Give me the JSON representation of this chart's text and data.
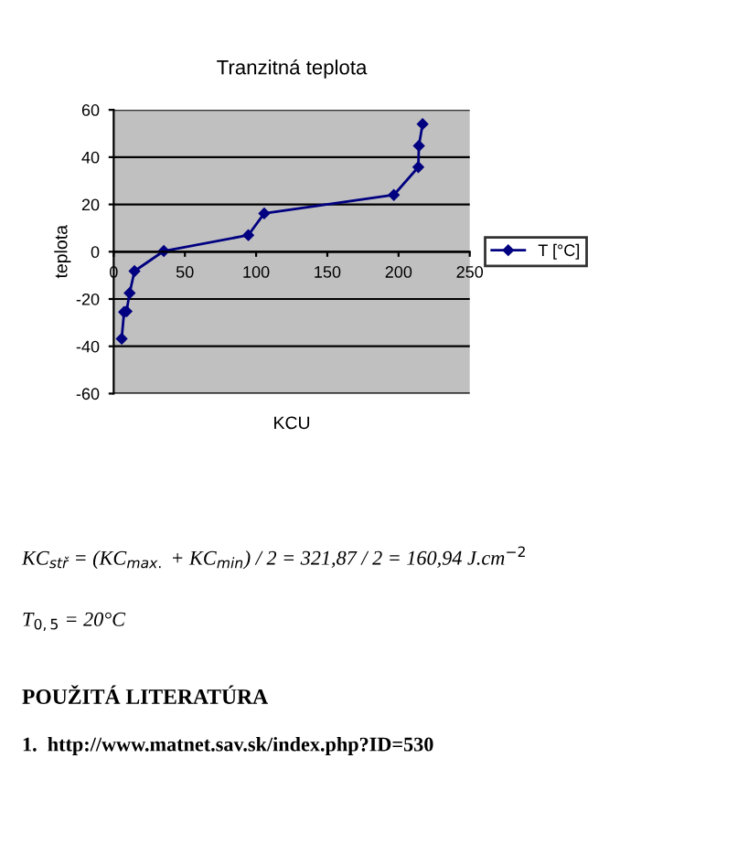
{
  "chart_data": {
    "type": "line",
    "title": "Tranzitná teplota",
    "xlabel": "KCU",
    "ylabel": "teplota",
    "series": [
      {
        "name": "T [°C]",
        "color": "#000080",
        "x": [
          5.6,
          7.3,
          9,
          11.2,
          14.6,
          35.2,
          94.5,
          105.7,
          196.7,
          213.9,
          214.3,
          216.9
        ],
        "values": [
          -36.8,
          -25.5,
          -25.2,
          -17.5,
          -8.2,
          0.3,
          7,
          16.2,
          24,
          35.8,
          44.8,
          54
        ]
      }
    ],
    "xlim": [
      0,
      250
    ],
    "xticks": [
      0,
      50,
      100,
      150,
      200,
      250
    ],
    "ylim": [
      -60,
      60
    ],
    "yticks": [
      -60,
      -40,
      -20,
      0,
      20,
      40,
      60
    ],
    "grid": "y",
    "legend": "right",
    "marker": "diamond",
    "line_style": "solid",
    "annotations": [
      "KC$_{stř}$ = (KC$_{max.}$ + KC$_{min}$) / 2 = 321,87 / 2 = 160,94 J.cm$^{−2}$",
      "T$_{0,5}$ = 20°C",
      "POUŽITÁ LITERATÚRA",
      "1.  http://www.matnet.sav.sk/index.php?ID=530"
    ]
  }
}
